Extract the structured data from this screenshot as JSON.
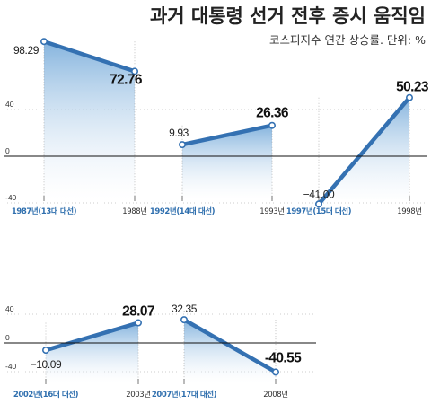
{
  "title": "과거 대통령 선거 전후 증시 움직임",
  "subtitle": "코스피지수 연간 상승률. 단위: %",
  "colors": {
    "line": "#3471b2",
    "area_top": "#7fb0dc",
    "area_bottom": "#ffffff",
    "axis": "#111111",
    "election_label": "#2f6fae",
    "grid": "#999999"
  },
  "chart_data": [
    {
      "type": "line",
      "y_ticks": [
        "40",
        "0",
        "-40"
      ],
      "pairs": [
        {
          "x": [
            "1987년(13대 대선)",
            "1988년"
          ],
          "values": [
            98.29,
            72.76
          ],
          "labels": [
            "98.29",
            "72.76"
          ]
        },
        {
          "x": [
            "1992년(14대 대선)",
            "1993년"
          ],
          "values": [
            9.93,
            26.36
          ],
          "labels": [
            "9.93",
            "26.36"
          ]
        },
        {
          "x": [
            "1997년(15대 대선)",
            "1998년"
          ],
          "values": [
            -41.0,
            50.23
          ],
          "labels": [
            "−41.00",
            "50.23"
          ]
        }
      ]
    },
    {
      "type": "line",
      "y_ticks": [
        "40",
        "0",
        "-40"
      ],
      "pairs": [
        {
          "x": [
            "2002년(16대 대선)",
            "2003년"
          ],
          "values": [
            -10.09,
            28.07
          ],
          "labels": [
            "−10.09",
            "28.07"
          ]
        },
        {
          "x": [
            "2007년(17대 대선)",
            "2008년"
          ],
          "values": [
            32.35,
            -40.55
          ],
          "labels": [
            "32.35",
            "-40.55"
          ]
        }
      ]
    }
  ]
}
